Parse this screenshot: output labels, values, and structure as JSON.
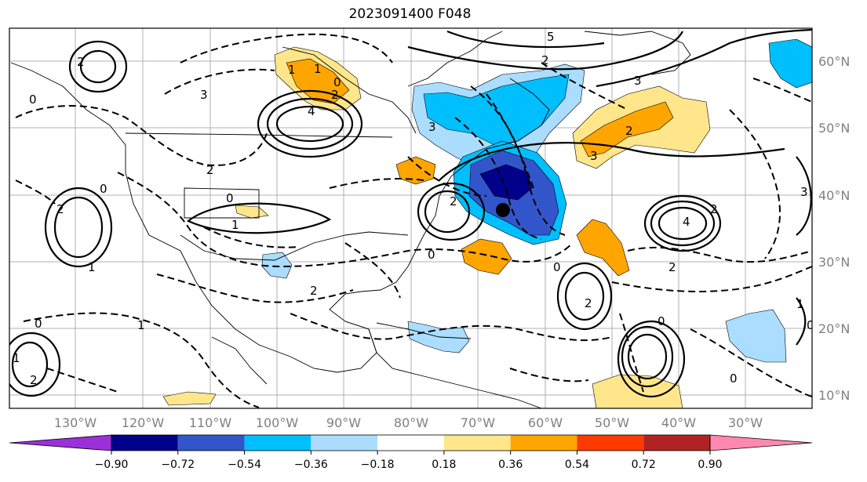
{
  "title": "2023091400 F048",
  "longitude_labels": [
    "130°W",
    "120°W",
    "110°W",
    "100°W",
    "90°W",
    "80°W",
    "70°W",
    "60°W",
    "50°W",
    "40°W",
    "30°W"
  ],
  "latitude_labels": [
    "60°N",
    "50°N",
    "40°N",
    "30°N",
    "20°N",
    "10°N"
  ],
  "colorbar": {
    "colors": [
      "#9b30d9",
      "#00008b",
      "#3355cc",
      "#00bfff",
      "#aaddff",
      "#ffffff",
      "#ffe68a",
      "#ffa500",
      "#ff3a00",
      "#b22222",
      "#ff88b0"
    ],
    "tick_labels": [
      "−0.90",
      "−0.72",
      "−0.54",
      "−0.36",
      "−0.18",
      "0.18",
      "0.36",
      "0.54",
      "0.72",
      "0.90"
    ]
  },
  "contour_labels": [
    "2",
    "3",
    "0",
    "1",
    "4",
    "2",
    "1",
    "0",
    "2",
    "5",
    "2",
    "3",
    "3",
    "2",
    "0",
    "1",
    "3",
    "0",
    "2",
    "4",
    "2",
    "3",
    "1",
    "2",
    "2",
    "0",
    "1",
    "2",
    "0",
    "0",
    "1",
    "2",
    "0",
    "2",
    "0",
    "1",
    "0"
  ],
  "marker": {
    "name": "storm-center",
    "color": "#000000"
  }
}
